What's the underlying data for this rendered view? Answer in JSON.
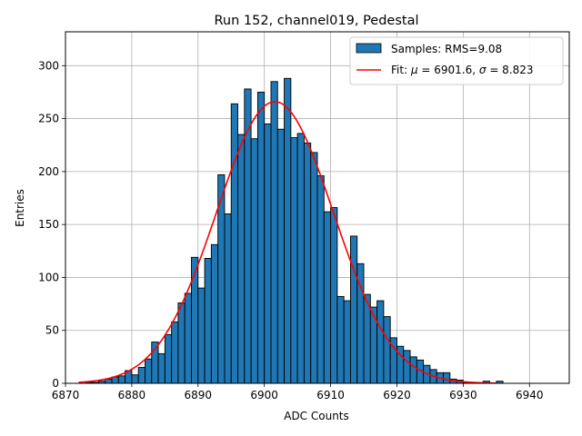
{
  "chart_data": {
    "type": "bar",
    "title": "Run 152, channel019, Pedestal",
    "xlabel": "ADC Counts",
    "ylabel": "Entries",
    "xlim": [
      6870,
      6946
    ],
    "ylim": [
      0,
      332
    ],
    "xticks": [
      6870,
      6880,
      6890,
      6900,
      6910,
      6920,
      6930,
      6940
    ],
    "yticks": [
      0,
      50,
      100,
      150,
      200,
      250,
      300
    ],
    "grid": true,
    "legend_position": "top-right",
    "histogram": {
      "name": "Samples: RMS=9.08",
      "color": "#1f77b4",
      "edgecolor": "#000000",
      "bin_width": 1,
      "bin_left_edges": [
        6873,
        6874,
        6875,
        6876,
        6877,
        6878,
        6879,
        6880,
        6881,
        6882,
        6883,
        6884,
        6885,
        6886,
        6887,
        6888,
        6889,
        6890,
        6891,
        6892,
        6893,
        6894,
        6895,
        6896,
        6897,
        6898,
        6899,
        6900,
        6901,
        6902,
        6903,
        6904,
        6905,
        6906,
        6907,
        6908,
        6909,
        6910,
        6911,
        6912,
        6913,
        6914,
        6915,
        6916,
        6917,
        6918,
        6919,
        6920,
        6921,
        6922,
        6923,
        6924,
        6925,
        6926,
        6927,
        6928,
        6929,
        6930,
        6931,
        6932,
        6933,
        6934,
        6935
      ],
      "counts": [
        1,
        1,
        2,
        4,
        6,
        7,
        12,
        8,
        15,
        23,
        39,
        28,
        46,
        58,
        76,
        85,
        119,
        90,
        118,
        131,
        197,
        160,
        264,
        235,
        278,
        231,
        275,
        245,
        285,
        240,
        288,
        232,
        236,
        227,
        218,
        196,
        162,
        166,
        82,
        78,
        139,
        113,
        84,
        72,
        78,
        63,
        43,
        35,
        31,
        25,
        22,
        17,
        13,
        10,
        10,
        4,
        3,
        1,
        0,
        0,
        2,
        0,
        2
      ]
    },
    "fit": {
      "name": "Fit: μ = 6901.6, σ = 8.823",
      "color": "#ff0000",
      "mu": 6901.6,
      "sigma": 8.823,
      "amplitude": 266,
      "x_range": [
        6872,
        6935
      ]
    }
  }
}
